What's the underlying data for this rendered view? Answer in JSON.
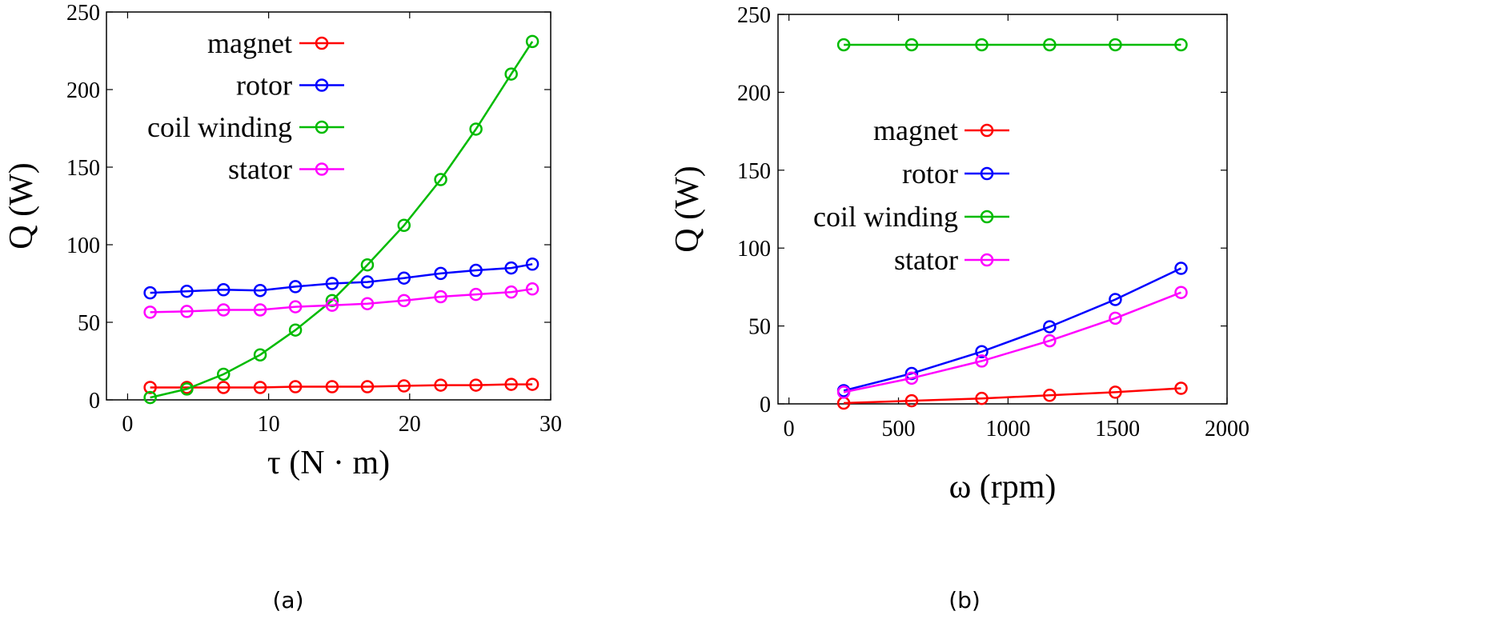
{
  "chart_data": [
    {
      "type": "line",
      "panel": "(a)",
      "xlabel": "τ (N · m)",
      "ylabel": "Q (W)",
      "xlim": [
        -1.5,
        30
      ],
      "ylim": [
        0,
        250
      ],
      "xticks": [
        0,
        10,
        20,
        30
      ],
      "yticks": [
        0,
        50,
        100,
        150,
        200,
        250
      ],
      "grid": false,
      "legend_position": "top-left",
      "x": [
        1.6,
        4.2,
        6.8,
        9.4,
        11.9,
        14.5,
        17.0,
        19.6,
        22.2,
        24.7,
        27.2,
        28.7
      ],
      "series": [
        {
          "name": "magnet",
          "color": "#ff0000",
          "values": [
            8,
            8,
            8,
            8,
            8.5,
            8.5,
            8.5,
            9,
            9.5,
            9.5,
            10,
            10
          ]
        },
        {
          "name": "rotor",
          "color": "#0000ff",
          "values": [
            69,
            70,
            71,
            70.5,
            73,
            75,
            76,
            78.5,
            81.5,
            83.5,
            85,
            87.5
          ]
        },
        {
          "name": "coil winding",
          "color": "#00bb00",
          "values": [
            1.5,
            7,
            16.5,
            29,
            45,
            64,
            87,
            112.5,
            142,
            174.5,
            210,
            231
          ]
        },
        {
          "name": "stator",
          "color": "#ff00ff",
          "values": [
            56.5,
            57,
            58,
            58,
            60,
            61,
            62,
            64,
            66.5,
            68,
            69.5,
            71.5
          ]
        }
      ]
    },
    {
      "type": "line",
      "panel": "(b)",
      "xlabel": "ω (rpm)",
      "ylabel": "Q (W)",
      "xlim": [
        -50,
        2000
      ],
      "ylim": [
        0,
        250
      ],
      "xticks": [
        0,
        500,
        1000,
        1500,
        2000
      ],
      "yticks": [
        0,
        50,
        100,
        150,
        200,
        250
      ],
      "grid": false,
      "legend_position": "center-left",
      "x": [
        250,
        560,
        880,
        1190,
        1490,
        1790
      ],
      "series": [
        {
          "name": "magnet",
          "color": "#ff0000",
          "values": [
            0.5,
            2,
            3.5,
            5.5,
            7.5,
            10
          ]
        },
        {
          "name": "rotor",
          "color": "#0000ff",
          "values": [
            8.5,
            19.5,
            33.5,
            49.5,
            67,
            87
          ]
        },
        {
          "name": "coil winding",
          "color": "#00bb00",
          "values": [
            230.5,
            230.5,
            230.5,
            230.5,
            230.5,
            230.5
          ]
        },
        {
          "name": "stator",
          "color": "#ff00ff",
          "values": [
            7.5,
            16.5,
            27.5,
            40.5,
            55,
            71.5
          ]
        }
      ]
    }
  ]
}
